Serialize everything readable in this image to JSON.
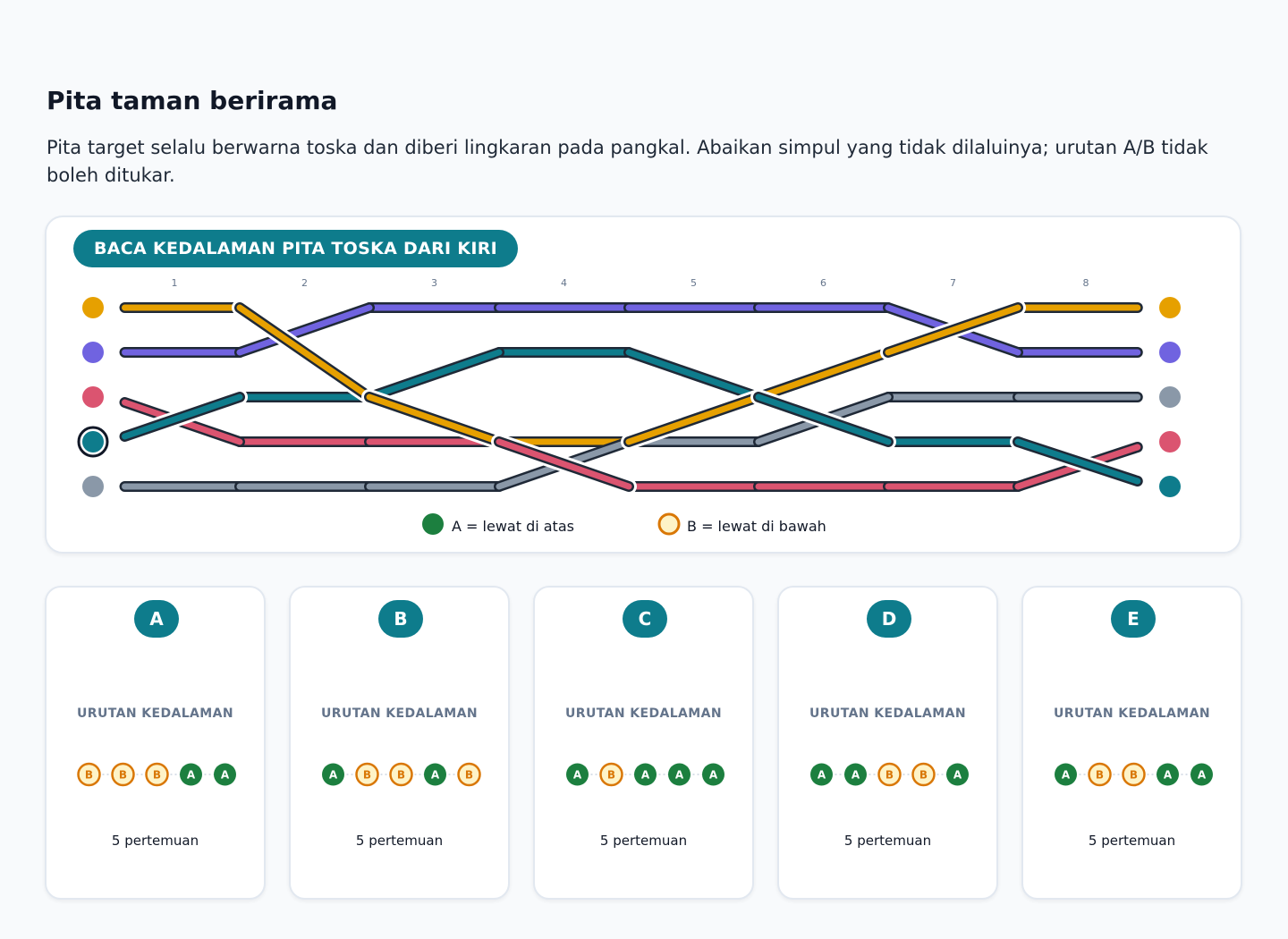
{
  "page": {
    "title": "Pita taman berirama",
    "instruction": "Pita target selalu berwarna toska dan diberi lingkaran pada pangkal. Abaikan simpul yang tidak dilaluinya; urutan A/B tidak boleh ditukar."
  },
  "diagram": {
    "banner": "BACA KEDALAMAN PITA TOSKA DARI KIRI",
    "columns": [
      "1",
      "2",
      "3",
      "4",
      "5",
      "6",
      "7",
      "8"
    ],
    "target_ribbon": "teal",
    "ribbons": [
      {
        "color_name": "orange",
        "color": "#e6a000",
        "lanes": [
          0,
          0,
          2,
          3,
          3,
          2,
          1,
          0,
          0
        ]
      },
      {
        "color_name": "purple",
        "color": "#7063e0",
        "lanes": [
          1,
          1,
          0,
          0,
          0,
          0,
          0,
          1,
          1
        ]
      },
      {
        "color_name": "red",
        "color": "#db5470",
        "lanes": [
          2,
          3,
          3,
          3,
          4,
          4,
          4,
          4,
          3
        ]
      },
      {
        "color_name": "teal",
        "color": "#0e7c8c",
        "lanes": [
          3,
          2,
          2,
          1,
          1,
          2,
          3,
          3,
          4
        ]
      },
      {
        "color_name": "gray",
        "color": "#8a98a8",
        "lanes": [
          4,
          4,
          4,
          4,
          3,
          3,
          2,
          2,
          2
        ]
      }
    ],
    "end_markers": [
      "#e6a000",
      "#7063e0",
      "#8a98a8",
      "#db5470",
      "#0e7c8c"
    ],
    "crossings": [
      {
        "column": 1,
        "over": "teal",
        "under": "red"
      },
      {
        "column": 2,
        "over": "orange",
        "under": "purple"
      },
      {
        "column": 3,
        "over": "orange",
        "under": "teal"
      },
      {
        "column": 4,
        "over": "red",
        "under": "gray"
      },
      {
        "column": 5,
        "over": "orange",
        "under": "teal"
      },
      {
        "column": 6,
        "over": "teal",
        "under": "gray"
      },
      {
        "column": 7,
        "over": "orange",
        "under": "purple"
      },
      {
        "column": 8,
        "over": "teal",
        "under": "red"
      }
    ],
    "legend": {
      "over_label": "A = lewat di atas",
      "under_label": "B = lewat di bawah",
      "over_color": "#1c7f3f",
      "under_color": "#d97706"
    }
  },
  "options": [
    {
      "letter": "A",
      "caption": "URUTAN KEDALAMAN",
      "sequence": [
        "B",
        "B",
        "B",
        "A",
        "A"
      ],
      "count_text": "5 pertemuan"
    },
    {
      "letter": "B",
      "caption": "URUTAN KEDALAMAN",
      "sequence": [
        "A",
        "B",
        "B",
        "A",
        "B"
      ],
      "count_text": "5 pertemuan"
    },
    {
      "letter": "C",
      "caption": "URUTAN KEDALAMAN",
      "sequence": [
        "A",
        "B",
        "A",
        "A",
        "A"
      ],
      "count_text": "5 pertemuan"
    },
    {
      "letter": "D",
      "caption": "URUTAN KEDALAMAN",
      "sequence": [
        "A",
        "A",
        "B",
        "B",
        "A"
      ],
      "count_text": "5 pertemuan"
    },
    {
      "letter": "E",
      "caption": "URUTAN KEDALAMAN",
      "sequence": [
        "A",
        "B",
        "B",
        "A",
        "A"
      ],
      "count_text": "5 pertemuan"
    }
  ]
}
